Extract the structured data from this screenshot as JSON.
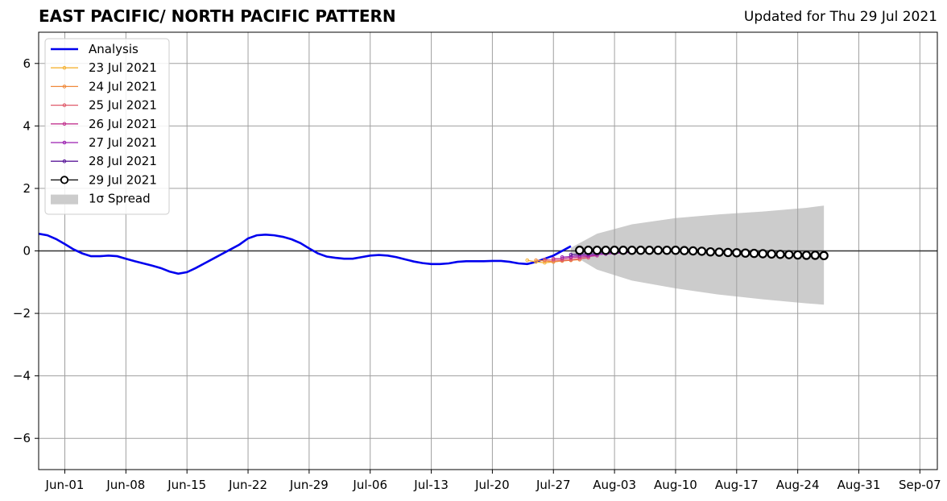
{
  "chart_data": {
    "type": "line",
    "title": "EAST PACIFIC/ NORTH PACIFIC PATTERN",
    "subtitle": "Updated for Thu 29 Jul 2021",
    "xlabel": "",
    "ylabel": "",
    "x_axis": {
      "start": "2021-05-29",
      "end": "2021-09-09",
      "tick_labels": [
        "Jun-01",
        "Jun-08",
        "Jun-15",
        "Jun-22",
        "Jun-29",
        "Jul-06",
        "Jul-13",
        "Jul-20",
        "Jul-27",
        "Aug-03",
        "Aug-10",
        "Aug-17",
        "Aug-24",
        "Aug-31",
        "Sep-07"
      ],
      "tick_dates": [
        "2021-06-01",
        "2021-06-08",
        "2021-06-15",
        "2021-06-22",
        "2021-06-29",
        "2021-07-06",
        "2021-07-13",
        "2021-07-20",
        "2021-07-27",
        "2021-08-03",
        "2021-08-10",
        "2021-08-17",
        "2021-08-24",
        "2021-08-31",
        "2021-09-07"
      ]
    },
    "ylim": [
      -7,
      7
    ],
    "y_ticks": [
      -6,
      -4,
      -2,
      0,
      2,
      4,
      6
    ],
    "y_tick_labels": [
      "−6",
      "−4",
      "−2",
      "0",
      "2",
      "4",
      "6"
    ],
    "grid": true,
    "legend_position": "top-left",
    "series": [
      {
        "name": "Analysis",
        "color": "#0000ee",
        "style": "line",
        "x": [
          "2021-05-29",
          "2021-05-30",
          "2021-05-31",
          "2021-06-01",
          "2021-06-02",
          "2021-06-03",
          "2021-06-04",
          "2021-06-05",
          "2021-06-06",
          "2021-06-07",
          "2021-06-08",
          "2021-06-09",
          "2021-06-10",
          "2021-06-11",
          "2021-06-12",
          "2021-06-13",
          "2021-06-14",
          "2021-06-15",
          "2021-06-16",
          "2021-06-17",
          "2021-06-18",
          "2021-06-19",
          "2021-06-20",
          "2021-06-21",
          "2021-06-22",
          "2021-06-23",
          "2021-06-24",
          "2021-06-25",
          "2021-06-26",
          "2021-06-27",
          "2021-06-28",
          "2021-06-29",
          "2021-06-30",
          "2021-07-01",
          "2021-07-02",
          "2021-07-03",
          "2021-07-04",
          "2021-07-05",
          "2021-07-06",
          "2021-07-07",
          "2021-07-08",
          "2021-07-09",
          "2021-07-10",
          "2021-07-11",
          "2021-07-12",
          "2021-07-13",
          "2021-07-14",
          "2021-07-15",
          "2021-07-16",
          "2021-07-17",
          "2021-07-18",
          "2021-07-19",
          "2021-07-20",
          "2021-07-21",
          "2021-07-22",
          "2021-07-23",
          "2021-07-24",
          "2021-07-25",
          "2021-07-26",
          "2021-07-27",
          "2021-07-28",
          "2021-07-29"
        ],
        "y": [
          0.55,
          0.5,
          0.38,
          0.22,
          0.05,
          -0.08,
          -0.17,
          -0.17,
          -0.15,
          -0.17,
          -0.25,
          -0.33,
          -0.4,
          -0.47,
          -0.55,
          -0.66,
          -0.73,
          -0.68,
          -0.55,
          -0.4,
          -0.25,
          -0.1,
          0.05,
          0.2,
          0.4,
          0.5,
          0.52,
          0.5,
          0.45,
          0.37,
          0.25,
          0.08,
          -0.08,
          -0.18,
          -0.22,
          -0.25,
          -0.25,
          -0.2,
          -0.15,
          -0.13,
          -0.15,
          -0.2,
          -0.27,
          -0.34,
          -0.39,
          -0.42,
          -0.42,
          -0.4,
          -0.35,
          -0.33,
          -0.33,
          -0.33,
          -0.32,
          -0.32,
          -0.35,
          -0.4,
          -0.42,
          -0.35,
          -0.25,
          -0.15,
          0.0,
          0.15
        ]
      },
      {
        "name": "23 Jul 2021",
        "color": "#f5b335",
        "style": "dots",
        "x": [
          "2021-07-24",
          "2021-07-25",
          "2021-07-26",
          "2021-07-27",
          "2021-07-28",
          "2021-07-29"
        ],
        "y": [
          -0.3,
          -0.35,
          -0.38,
          -0.35,
          -0.32,
          -0.3
        ]
      },
      {
        "name": "24 Jul 2021",
        "color": "#f08a3c",
        "style": "dots",
        "x": [
          "2021-07-25",
          "2021-07-26",
          "2021-07-27",
          "2021-07-28",
          "2021-07-29",
          "2021-07-30"
        ],
        "y": [
          -0.3,
          -0.32,
          -0.35,
          -0.32,
          -0.3,
          -0.28
        ]
      },
      {
        "name": "25 Jul 2021",
        "color": "#e05a6a",
        "style": "dots",
        "x": [
          "2021-07-26",
          "2021-07-27",
          "2021-07-28",
          "2021-07-29",
          "2021-07-30",
          "2021-07-31"
        ],
        "y": [
          -0.28,
          -0.3,
          -0.3,
          -0.28,
          -0.25,
          -0.22
        ]
      },
      {
        "name": "26 Jul 2021",
        "color": "#c2358f",
        "style": "dots",
        "x": [
          "2021-07-27",
          "2021-07-28",
          "2021-07-29",
          "2021-07-30",
          "2021-07-31",
          "2021-08-01"
        ],
        "y": [
          -0.25,
          -0.25,
          -0.22,
          -0.2,
          -0.18,
          -0.15
        ]
      },
      {
        "name": "27 Jul 2021",
        "color": "#9a1fb0",
        "style": "dots",
        "x": [
          "2021-07-28",
          "2021-07-29",
          "2021-07-30",
          "2021-07-31",
          "2021-08-01",
          "2021-08-02",
          "2021-08-03",
          "2021-08-04",
          "2021-08-05"
        ],
        "y": [
          -0.2,
          -0.18,
          -0.15,
          -0.15,
          -0.12,
          -0.1,
          -0.08,
          -0.06,
          -0.04
        ]
      },
      {
        "name": "28 Jul 2021",
        "color": "#5b1a9a",
        "style": "dots",
        "x": [
          "2021-07-29",
          "2021-07-30",
          "2021-07-31",
          "2021-08-01",
          "2021-08-02",
          "2021-08-03",
          "2021-08-04",
          "2021-08-05",
          "2021-08-06"
        ],
        "y": [
          -0.12,
          -0.1,
          -0.1,
          -0.08,
          -0.06,
          -0.05,
          -0.04,
          -0.02,
          0.0
        ]
      },
      {
        "name": "29 Jul 2021",
        "color": "#000000",
        "style": "circles",
        "x": [
          "2021-07-30",
          "2021-07-31",
          "2021-08-01",
          "2021-08-02",
          "2021-08-03",
          "2021-08-04",
          "2021-08-05",
          "2021-08-06",
          "2021-08-07",
          "2021-08-08",
          "2021-08-09",
          "2021-08-10",
          "2021-08-11",
          "2021-08-12",
          "2021-08-13",
          "2021-08-14",
          "2021-08-15",
          "2021-08-16",
          "2021-08-17",
          "2021-08-18",
          "2021-08-19",
          "2021-08-20",
          "2021-08-21",
          "2021-08-22",
          "2021-08-23",
          "2021-08-24",
          "2021-08-25",
          "2021-08-26",
          "2021-08-27"
        ],
        "y": [
          0.02,
          0.02,
          0.02,
          0.02,
          0.02,
          0.02,
          0.02,
          0.02,
          0.02,
          0.02,
          0.02,
          0.02,
          0.01,
          0.0,
          -0.01,
          -0.03,
          -0.04,
          -0.05,
          -0.06,
          -0.07,
          -0.08,
          -0.09,
          -0.1,
          -0.11,
          -0.12,
          -0.13,
          -0.14,
          -0.14,
          -0.15
        ]
      }
    ],
    "spread": {
      "name": "1σ Spread",
      "color": "#cccccc",
      "x": [
        "2021-07-29",
        "2021-08-01",
        "2021-08-05",
        "2021-08-10",
        "2021-08-15",
        "2021-08-20",
        "2021-08-25",
        "2021-08-27"
      ],
      "upper": [
        0.1,
        0.55,
        0.85,
        1.05,
        1.17,
        1.26,
        1.38,
        1.45
      ],
      "lower": [
        -0.1,
        -0.6,
        -0.95,
        -1.2,
        -1.4,
        -1.55,
        -1.68,
        -1.72
      ]
    }
  }
}
